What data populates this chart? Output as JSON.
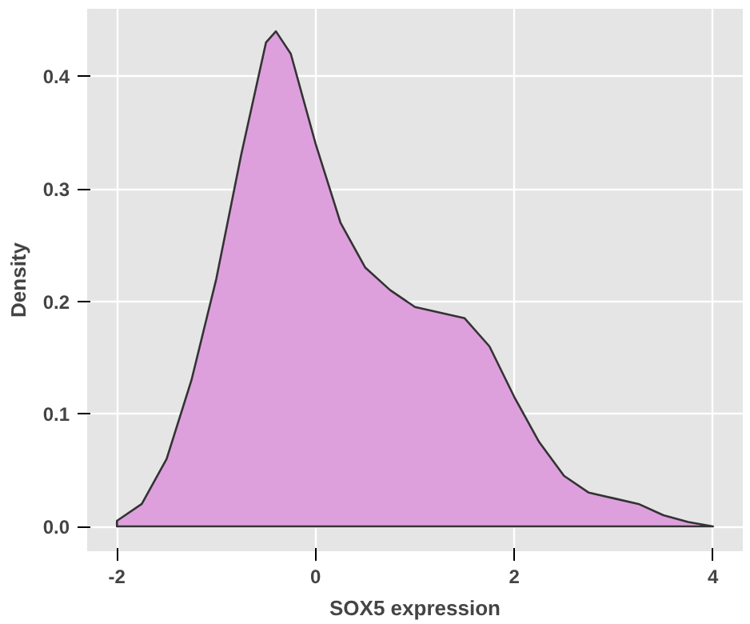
{
  "chart_data": {
    "type": "area",
    "xlabel": "SOX5 expression",
    "ylabel": "Density",
    "x": [
      -2,
      -1.75,
      -1.5,
      -1.25,
      -1,
      -0.75,
      -0.5,
      -0.4,
      -0.25,
      0,
      0.25,
      0.5,
      0.75,
      1,
      1.25,
      1.5,
      1.75,
      2,
      2.25,
      2.5,
      2.75,
      3,
      3.25,
      3.5,
      3.75,
      4
    ],
    "series": [
      {
        "color": "#dda0dd",
        "values": [
          0.005,
          0.02,
          0.06,
          0.13,
          0.22,
          0.33,
          0.43,
          0.44,
          0.42,
          0.34,
          0.27,
          0.23,
          0.21,
          0.195,
          0.19,
          0.185,
          0.16,
          0.115,
          0.075,
          0.045,
          0.03,
          0.025,
          0.02,
          0.01,
          0.004,
          0
        ]
      }
    ],
    "xlim": [
      -2.3,
      4.3
    ],
    "ylim": [
      -0.022,
      0.46
    ],
    "xticks": [
      -2,
      0,
      2,
      4
    ],
    "yticks": [
      {
        "value": 0,
        "label": "0.0"
      },
      0.1,
      0.2,
      0.3,
      0.4
    ],
    "grid": true
  }
}
